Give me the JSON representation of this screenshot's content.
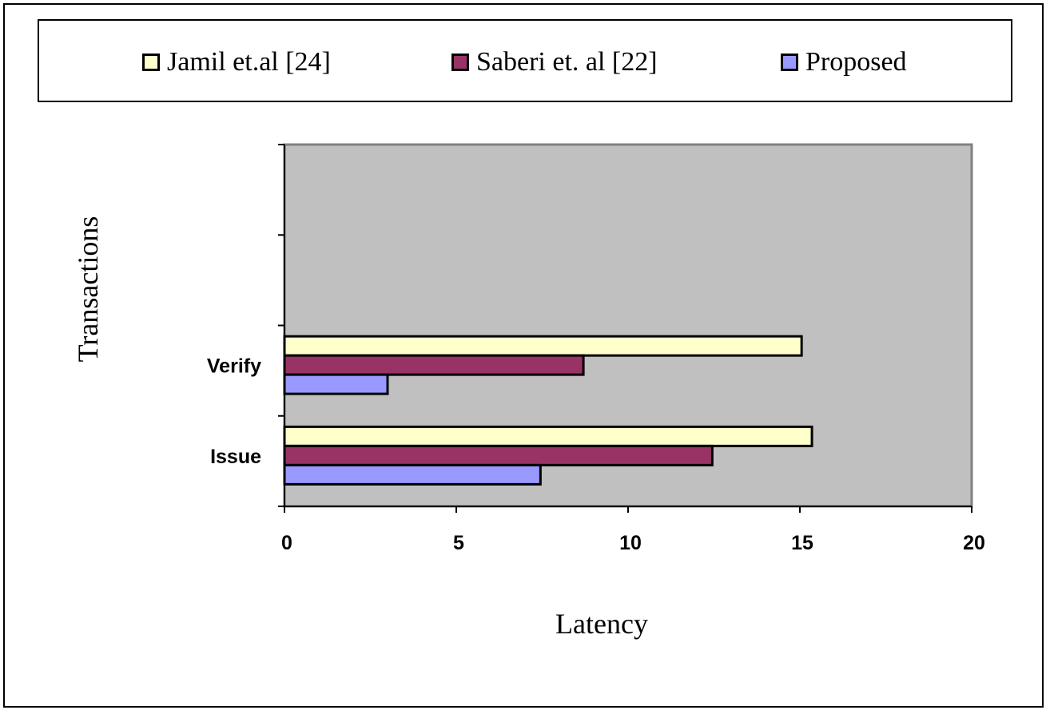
{
  "chart_data": {
    "type": "bar",
    "orientation": "horizontal",
    "categories": [
      "Issue",
      "Verify"
    ],
    "series": [
      {
        "name": "Jamil et.al [24]",
        "color": "#ffffcc",
        "values": [
          15.35,
          15.05
        ]
      },
      {
        "name": "Saberi et. al [22]",
        "color": "#993366",
        "values": [
          12.45,
          8.7
        ]
      },
      {
        "name": "Proposed",
        "color": "#9999ff",
        "values": [
          7.45,
          3.0
        ]
      }
    ],
    "xlabel": "Latency",
    "ylabel": "Transactions",
    "xlim": [
      0,
      20
    ],
    "xticks": [
      "0",
      "5",
      "10",
      "15",
      "20"
    ],
    "plot_background": "#c0c0c0",
    "grid": false,
    "legend_position": "top"
  }
}
